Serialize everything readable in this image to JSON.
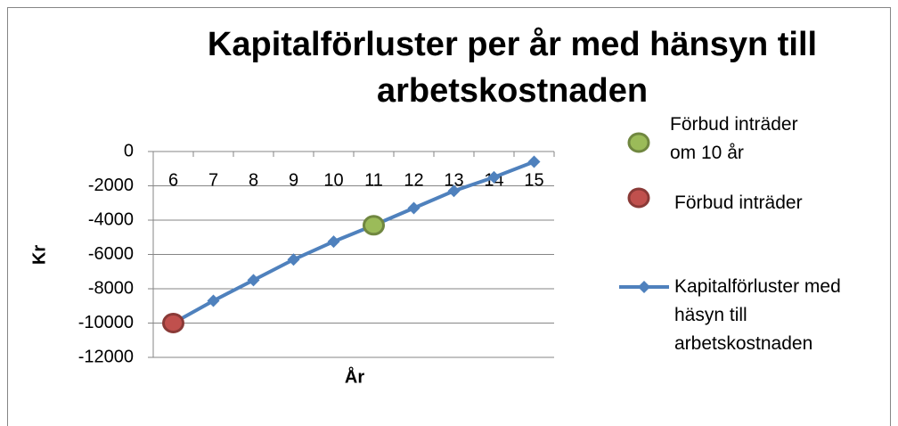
{
  "chart_data": {
    "type": "line",
    "title": "Kapitalförluster per år med hänsyn till arbetskostnaden",
    "x_label": "År",
    "y_label": "Kr",
    "categories": [
      "6",
      "7",
      "8",
      "9",
      "10",
      "11",
      "12",
      "13",
      "14",
      "15"
    ],
    "series": [
      {
        "name": "Kapitalförluster med häsyn till arbetskostnaden",
        "color": "#4f81bd",
        "values": [
          -10000,
          -8700,
          -7500,
          -6300,
          -5250,
          -4300,
          -3300,
          -2300,
          -1500,
          -600
        ]
      },
      {
        "name": "Förbud inträder om 10 år",
        "color": "#9bbb59",
        "values": [
          null,
          null,
          null,
          null,
          null,
          -4300,
          null,
          null,
          null,
          null
        ]
      },
      {
        "name": "Förbud inträder",
        "color": "#c0504d",
        "values": [
          -10000,
          null,
          null,
          null,
          null,
          null,
          null,
          null,
          null,
          null
        ]
      }
    ],
    "ylim": [
      -12000,
      0
    ],
    "yticks": [
      -12000,
      -10000,
      -8000,
      -6000,
      -4000,
      -2000,
      0
    ],
    "grid": true
  }
}
